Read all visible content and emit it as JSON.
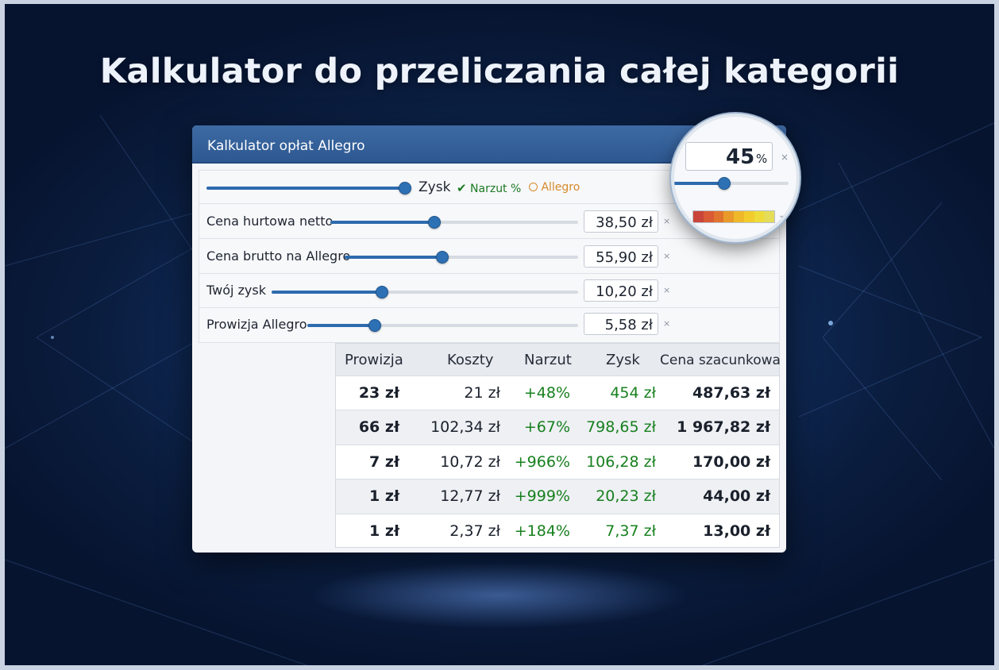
{
  "headline": "Kalkulator do przeliczania całej kategorii",
  "panel": {
    "title": "Kalkulator opłat Allegro",
    "mode_row": {
      "slider_level": 1.0,
      "mode_label": "Zysk",
      "option_markup": "Narzut %",
      "option_allegro": "Allegro"
    },
    "rows": [
      {
        "label": "Cena hurtowa netto",
        "value": "38,50 zł",
        "slider_level": 0.42
      },
      {
        "label": "Cena brutto na Allegro",
        "value": "55,90 zł",
        "slider_level": 0.42
      },
      {
        "label": "Twój zysk",
        "value": "10,20 zł",
        "slider_level": 0.36
      },
      {
        "label": "Prowizja Allegro",
        "value": "5,58 zł",
        "slider_level": 0.25
      }
    ],
    "clear_symbol": "×"
  },
  "magnifier": {
    "value": "45",
    "unit": "%",
    "clear_symbol": "×",
    "slider_level": 0.45,
    "heat_colors": [
      "#c9453b",
      "#d95a34",
      "#e0732d",
      "#e99a2a",
      "#efb82a",
      "#f1cc2c",
      "#eedb3a",
      "#e5dd58"
    ]
  },
  "table": {
    "headers": [
      "Prowizja",
      "Koszty",
      "Narzut",
      "Zysk",
      "Cena szacunkowa"
    ],
    "rows": [
      [
        "23 zł",
        "21 zł",
        "+48%",
        "454 zł",
        "487,63 zł"
      ],
      [
        "66 zł",
        "102,34 zł",
        "+67%",
        "798,65 zł",
        "1 967,82 zł"
      ],
      [
        "7 zł",
        "10,72 zł",
        "+966%",
        "106,28 zł",
        "170,00 zł"
      ],
      [
        "1 zł",
        "12,77 zł",
        "+999%",
        "20,23 zł",
        "44,00 zł"
      ],
      [
        "1 zł",
        "2,37 zł",
        "+184%",
        "7,37 zł",
        "13,00 zł"
      ]
    ]
  },
  "colors": {
    "accent": "#2d6aae",
    "positive": "#18801f",
    "allegro_orange": "#d7892a"
  }
}
